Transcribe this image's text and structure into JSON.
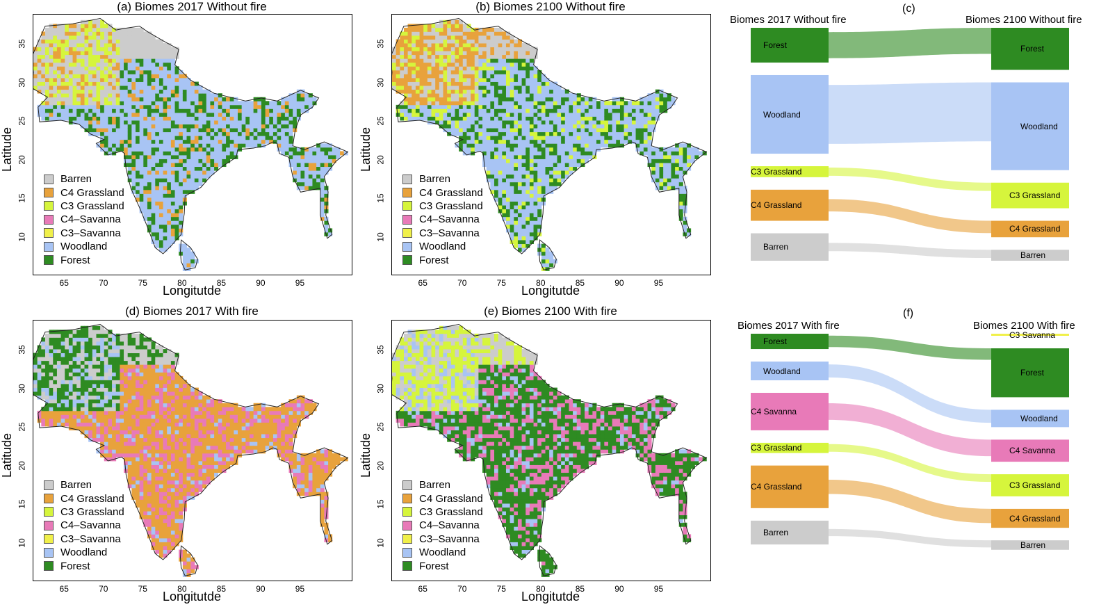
{
  "colors": {
    "Barren": "#cccccc",
    "C4 Grassland": "#e8a23c",
    "C3 Grassland": "#d6f53c",
    "C4-Savanna": "#e87ab8",
    "C3-Savanna": "#f0f04a",
    "Woodland": "#a8c4f4",
    "Forest": "#2e8b22"
  },
  "legend": [
    "Barren",
    "C4 Grassland",
    "C3 Grassland",
    "C4–Savanna",
    "C3–Savanna",
    "Woodland",
    "Forest"
  ],
  "legend_keys": [
    "Barren",
    "C4 Grassland",
    "C3 Grassland",
    "C4-Savanna",
    "C3-Savanna",
    "Woodland",
    "Forest"
  ],
  "axes": {
    "xlabel": "Longitutde",
    "ylabel": "Latitude",
    "xticks": [
      "65",
      "70",
      "75",
      "80",
      "85",
      "90",
      "95"
    ],
    "yticks": [
      "35",
      "30",
      "25",
      "20",
      "15",
      "10"
    ]
  },
  "maps": [
    {
      "title": "(a) Biomes 2017 Without fire",
      "dominant": "Woodland",
      "mix": [
        "Forest",
        "C4 Grassland",
        "Barren",
        "C3 Grassland"
      ]
    },
    {
      "title": "(b) Biomes 2100 Without fire",
      "dominant": "Woodland",
      "mix": [
        "Forest",
        "C3 Grassland",
        "C4 Grassland",
        "Barren"
      ]
    },
    {
      "title": "(d) Biomes 2017 With fire",
      "dominant": "C4 Grassland",
      "mix": [
        "C4-Savanna",
        "Woodland",
        "Forest",
        "Barren"
      ]
    },
    {
      "title": "(e) Biomes 2100 With fire",
      "dominant": "Forest",
      "mix": [
        "C4-Savanna",
        "Woodland",
        "C3 Grassland",
        "Barren"
      ]
    }
  ],
  "sankeys": [
    {
      "letter": "(c)",
      "left_title": "Biomes 2017 Without fire",
      "right_title": "Biomes 2100 Without fire",
      "left_nodes": [
        {
          "name": "Forest",
          "color_key": "Forest",
          "share": 0.19
        },
        {
          "name": "Woodland",
          "color_key": "Woodland",
          "share": 0.43
        },
        {
          "name": "C3 Grassland",
          "color_key": "C3 Grassland",
          "share": 0.06
        },
        {
          "name": "C4 Grassland",
          "color_key": "C4 Grassland",
          "share": 0.17
        },
        {
          "name": "Barren",
          "color_key": "Barren",
          "share": 0.15
        }
      ],
      "right_nodes": [
        {
          "name": "Forest",
          "color_key": "Forest",
          "share": 0.23
        },
        {
          "name": "Woodland",
          "color_key": "Woodland",
          "share": 0.48
        },
        {
          "name": "C3 Grassland",
          "color_key": "C3 Grassland",
          "share": 0.14
        },
        {
          "name": "C4 Grassland",
          "color_key": "C4 Grassland",
          "share": 0.09
        },
        {
          "name": "Barren",
          "color_key": "Barren",
          "share": 0.06
        }
      ]
    },
    {
      "letter": "(f)",
      "left_title": "Biomes 2017 With fire",
      "right_title": "Biomes 2100 With fire",
      "left_nodes": [
        {
          "name": "Forest",
          "color_key": "Forest",
          "share": 0.09
        },
        {
          "name": "Woodland",
          "color_key": "Woodland",
          "share": 0.11
        },
        {
          "name": "C4 Savanna",
          "color_key": "C4-Savanna",
          "share": 0.22
        },
        {
          "name": "C3 Grassland",
          "color_key": "C3 Grassland",
          "share": 0.06
        },
        {
          "name": "C4 Grassland",
          "color_key": "C4 Grassland",
          "share": 0.25
        },
        {
          "name": "Barren",
          "color_key": "Barren",
          "share": 0.14
        }
      ],
      "right_nodes": [
        {
          "name": "C3 Savanna",
          "color_key": "C3-Savanna",
          "share": 0.01
        },
        {
          "name": "Forest",
          "color_key": "Forest",
          "share": 0.31
        },
        {
          "name": "Woodland",
          "color_key": "Woodland",
          "share": 0.11
        },
        {
          "name": "C4 Savanna",
          "color_key": "C4-Savanna",
          "share": 0.14
        },
        {
          "name": "C3 Grassland",
          "color_key": "C3 Grassland",
          "share": 0.14
        },
        {
          "name": "C4 Grassland",
          "color_key": "C4 Grassland",
          "share": 0.12
        },
        {
          "name": "Barren",
          "color_key": "Barren",
          "share": 0.06
        }
      ]
    }
  ]
}
